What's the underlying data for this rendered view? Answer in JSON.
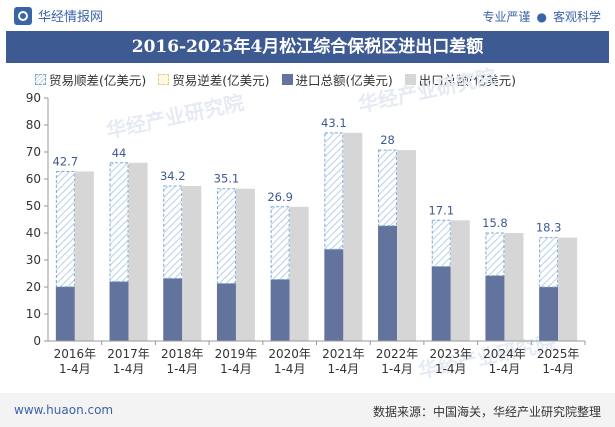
{
  "header": {
    "brand": "华经情报网",
    "tagline_left": "专业严谨",
    "tagline_sep": "●",
    "tagline_right": "客观科学"
  },
  "watermark": "华经产业研究院",
  "legend": {
    "surplus": "贸易顺差(亿美元)",
    "deficit": "贸易逆差(亿美元)",
    "import": "进口总额(亿美元)",
    "export": "出口总额(亿美元)"
  },
  "footer": {
    "website": "www.huaon.com",
    "source": "数据来源：中国海关，华经产业研究院整理"
  },
  "colors": {
    "import": "#62739e",
    "export": "#d6d6d6",
    "surplus_hatch": "#b8d0e8",
    "surplus_border": "#7fa9cf",
    "label": "#3e5a92",
    "title_bg": "#3e5a92"
  },
  "chart_data": {
    "type": "bar",
    "title": "2016-2025年4月松江综合保税区进出口差额",
    "categories": [
      "2016年\n1-4月",
      "2017年\n1-4月",
      "2018年\n1-4月",
      "2019年\n1-4月",
      "2020年\n1-4月",
      "2021年\n1-4月",
      "2022年\n1-4月",
      "2023年\n1-4月",
      "2024年\n1-4月",
      "2025年\n1-4月"
    ],
    "series": [
      {
        "name": "进口总额(亿美元)",
        "values": [
          20.1,
          22.0,
          23.2,
          21.3,
          22.8,
          34.0,
          42.7,
          27.6,
          24.2,
          20.0
        ]
      },
      {
        "name": "出口总额(亿美元)",
        "values": [
          62.8,
          66.0,
          57.4,
          56.4,
          49.7,
          77.1,
          70.7,
          44.7,
          40.0,
          38.3
        ]
      },
      {
        "name": "贸易顺差(亿美元)",
        "values": [
          42.7,
          44,
          34.2,
          35.1,
          26.9,
          43.1,
          28,
          17.1,
          15.8,
          18.3
        ]
      },
      {
        "name": "贸易逆差(亿美元)",
        "values": [
          0,
          0,
          0,
          0,
          0,
          0,
          0,
          0,
          0,
          0
        ]
      }
    ],
    "ylim": [
      0,
      90
    ],
    "yticks": [
      0,
      10,
      20,
      30,
      40,
      50,
      60,
      70,
      80,
      90
    ],
    "xlabel": "",
    "ylabel": "",
    "grid": false,
    "legend_position": "top-left"
  }
}
